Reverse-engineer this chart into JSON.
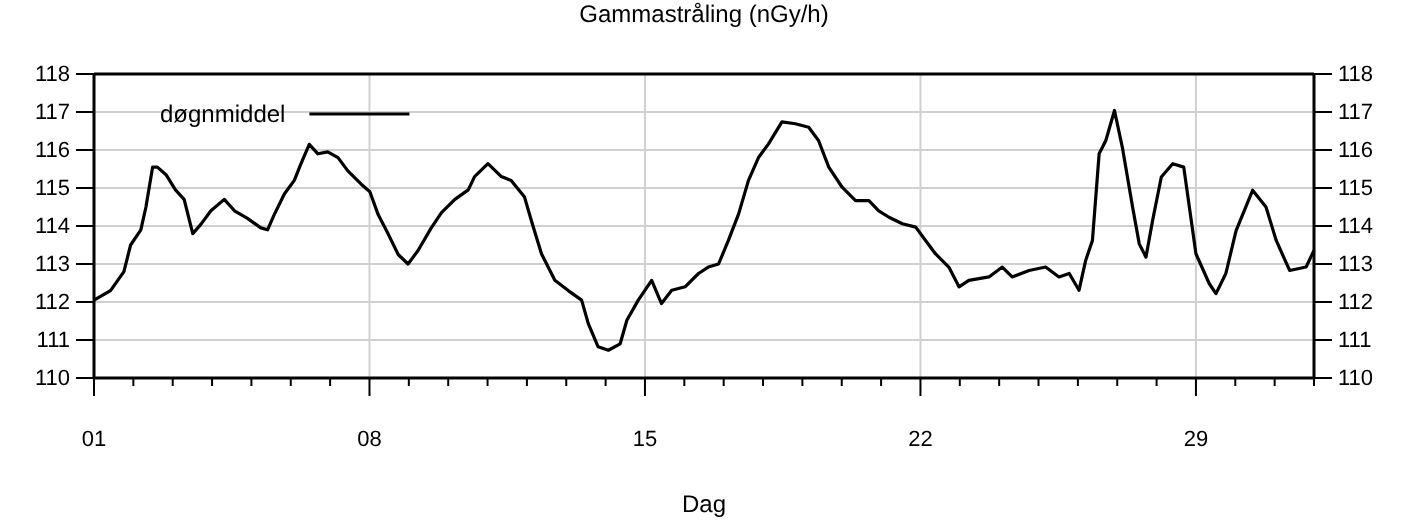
{
  "chart_data": {
    "type": "line",
    "title": "Gammastråling (nGy/h)",
    "xlabel": "Dag",
    "x": [
      1.0,
      1.42,
      1.76,
      1.93,
      2.19,
      2.32,
      2.49,
      2.61,
      2.83,
      3.07,
      3.29,
      3.51,
      3.72,
      3.97,
      4.31,
      4.57,
      4.9,
      5.24,
      5.41,
      5.58,
      5.84,
      6.09,
      6.26,
      6.47,
      6.69,
      6.94,
      7.2,
      7.45,
      7.79,
      8.01,
      8.22,
      8.47,
      8.73,
      8.98,
      9.23,
      9.57,
      9.83,
      10.17,
      10.51,
      10.67,
      11.01,
      11.35,
      11.6,
      11.94,
      12.11,
      12.37,
      12.71,
      13.05,
      13.39,
      13.56,
      13.81,
      14.07,
      14.37,
      14.54,
      14.83,
      15.17,
      15.42,
      15.68,
      16.02,
      16.36,
      16.61,
      16.87,
      17.12,
      17.38,
      17.63,
      17.89,
      18.14,
      18.48,
      18.82,
      19.16,
      19.41,
      19.67,
      20.01,
      20.35,
      20.69,
      20.94,
      21.2,
      21.54,
      21.88,
      22.13,
      22.38,
      22.72,
      22.98,
      23.23,
      23.74,
      24.08,
      24.33,
      24.76,
      25.18,
      25.52,
      25.78,
      26.03,
      26.2,
      26.37,
      26.54,
      26.71,
      26.93,
      27.13,
      27.39,
      27.56,
      27.73,
      27.9,
      28.12,
      28.41,
      28.69,
      29.0,
      29.34,
      29.51,
      29.76,
      30.02,
      30.44,
      30.78,
      31.04,
      31.38,
      31.8,
      32.0
    ],
    "series": [
      {
        "name": "døgnmiddel",
        "color": "#000000",
        "values": [
          112.05,
          112.3,
          112.8,
          113.5,
          113.9,
          114.5,
          115.55,
          115.55,
          115.35,
          114.95,
          114.7,
          113.8,
          114.05,
          114.4,
          114.7,
          114.4,
          114.2,
          113.95,
          113.9,
          114.3,
          114.85,
          115.2,
          115.64,
          116.15,
          115.9,
          115.95,
          115.8,
          115.45,
          115.1,
          114.9,
          114.3,
          113.8,
          113.25,
          113.0,
          113.35,
          113.95,
          114.35,
          114.7,
          114.95,
          115.3,
          115.64,
          115.3,
          115.2,
          114.76,
          114.15,
          113.27,
          112.57,
          112.3,
          112.05,
          111.43,
          110.82,
          110.73,
          110.9,
          111.52,
          112.05,
          112.57,
          111.96,
          112.31,
          112.4,
          112.75,
          112.92,
          113.0,
          113.62,
          114.32,
          115.2,
          115.81,
          116.16,
          116.74,
          116.69,
          116.6,
          116.25,
          115.55,
          115.02,
          114.67,
          114.67,
          114.4,
          114.23,
          114.06,
          113.97,
          113.62,
          113.27,
          112.92,
          112.4,
          112.57,
          112.66,
          112.92,
          112.66,
          112.83,
          112.92,
          112.66,
          112.75,
          112.31,
          113.1,
          113.62,
          115.9,
          116.25,
          117.04,
          116.07,
          114.5,
          113.53,
          113.18,
          114.15,
          115.29,
          115.64,
          115.55,
          113.27,
          112.48,
          112.22,
          112.75,
          113.88,
          114.94,
          114.5,
          113.62,
          112.83,
          112.92,
          113.36
        ]
      }
    ],
    "xlim": [
      1,
      32
    ],
    "xticks": [
      {
        "value": 1,
        "label": "01"
      },
      {
        "value": 2,
        "label": null
      },
      {
        "value": 3,
        "label": null
      },
      {
        "value": 4,
        "label": null
      },
      {
        "value": 5,
        "label": null
      },
      {
        "value": 6,
        "label": null
      },
      {
        "value": 7,
        "label": null
      },
      {
        "value": 8,
        "label": "08"
      },
      {
        "value": 9,
        "label": null
      },
      {
        "value": 10,
        "label": null
      },
      {
        "value": 11,
        "label": null
      },
      {
        "value": 12,
        "label": null
      },
      {
        "value": 13,
        "label": null
      },
      {
        "value": 14,
        "label": null
      },
      {
        "value": 15,
        "label": "15"
      },
      {
        "value": 16,
        "label": null
      },
      {
        "value": 17,
        "label": null
      },
      {
        "value": 18,
        "label": null
      },
      {
        "value": 19,
        "label": null
      },
      {
        "value": 20,
        "label": null
      },
      {
        "value": 21,
        "label": null
      },
      {
        "value": 22,
        "label": "22"
      },
      {
        "value": 23,
        "label": null
      },
      {
        "value": 24,
        "label": null
      },
      {
        "value": 25,
        "label": null
      },
      {
        "value": 26,
        "label": null
      },
      {
        "value": 27,
        "label": null
      },
      {
        "value": 28,
        "label": null
      },
      {
        "value": 29,
        "label": "29"
      },
      {
        "value": 30,
        "label": null
      },
      {
        "value": 31,
        "label": null
      },
      {
        "value": 32,
        "label": null
      }
    ],
    "ylim": [
      110,
      118
    ],
    "yticks": [
      110,
      111,
      112,
      113,
      114,
      115,
      116,
      117,
      118
    ],
    "y2lim": [
      110,
      118
    ],
    "y2ticks": [
      110,
      111,
      112,
      113,
      114,
      115,
      116,
      117,
      118
    ],
    "grid": true,
    "legend": "top left",
    "marker": "none",
    "line_style": "solid"
  }
}
